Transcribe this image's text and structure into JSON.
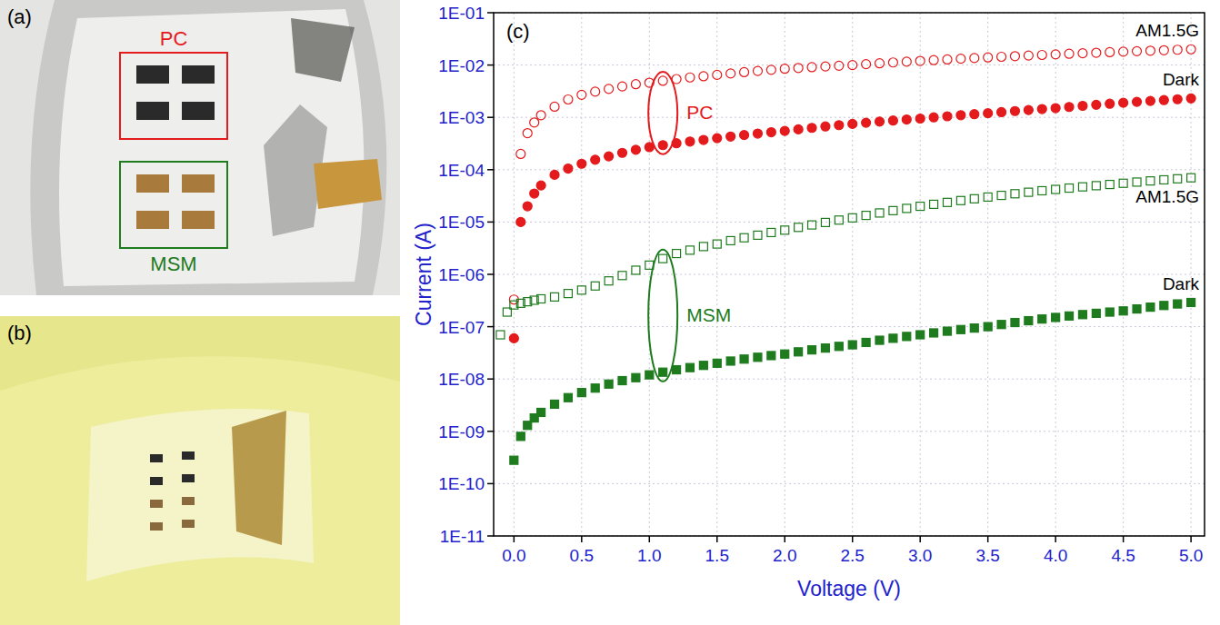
{
  "figure": {
    "panels": [
      {
        "letter": "(a)",
        "labels": [
          "PC",
          "MSM"
        ]
      },
      {
        "letter": "(b)"
      }
    ]
  },
  "chart_data": {
    "type": "scatter",
    "panel": "(c)",
    "x_label": "Voltage (V)",
    "y_label": "Current (A)",
    "log": "y",
    "grid": true,
    "xlim": [
      -0.15,
      5.1
    ],
    "ylim": [
      1e-11,
      0.1
    ],
    "xticks": [
      {
        "value": 0,
        "label": "0.0"
      },
      {
        "value": 0.5,
        "label": "0.5"
      },
      {
        "value": 1,
        "label": "1.0"
      },
      {
        "value": 1.5,
        "label": "1.5"
      },
      {
        "value": 2,
        "label": "2.0"
      },
      {
        "value": 2.5,
        "label": "2.5"
      },
      {
        "value": 3,
        "label": "3.0"
      },
      {
        "value": 3.5,
        "label": "3.5"
      },
      {
        "value": 4,
        "label": "4.0"
      },
      {
        "value": 4.5,
        "label": "4.5"
      },
      {
        "value": 5,
        "label": "5.0"
      }
    ],
    "yticks": [
      {
        "value": 1e-11,
        "label": "1E-11"
      },
      {
        "value": 1e-10,
        "label": "1E-10"
      },
      {
        "value": 1e-09,
        "label": "1E-09"
      },
      {
        "value": 1e-08,
        "label": "1E-08"
      },
      {
        "value": 1e-07,
        "label": "1E-07"
      },
      {
        "value": 1e-06,
        "label": "1E-06"
      },
      {
        "value": 1e-05,
        "label": "1E-05"
      },
      {
        "value": 0.0001,
        "label": "1E-04"
      },
      {
        "value": 0.001,
        "label": "1E-03"
      },
      {
        "value": 0.01,
        "label": "1E-02"
      },
      {
        "value": 0.1,
        "label": "1E-01"
      }
    ],
    "annotations": [
      "PC",
      "MSM"
    ],
    "x": [
      -0.1,
      -0.05,
      0,
      0.05,
      0.1,
      0.15,
      0.2,
      0.3,
      0.4,
      0.5,
      0.6,
      0.7,
      0.8,
      0.9,
      1.0,
      1.1,
      1.2,
      1.3,
      1.4,
      1.5,
      1.6,
      1.7,
      1.8,
      1.9,
      2.0,
      2.1,
      2.2,
      2.3,
      2.4,
      2.5,
      2.6,
      2.7,
      2.8,
      2.9,
      3.0,
      3.1,
      3.2,
      3.3,
      3.4,
      3.5,
      3.6,
      3.7,
      3.8,
      3.9,
      4.0,
      4.1,
      4.2,
      4.3,
      4.4,
      4.5,
      4.6,
      4.7,
      4.8,
      4.9,
      5.0
    ],
    "series": [
      {
        "name": "AM1.5G",
        "color": "#e41a1c",
        "marker": "open-circle",
        "values": [
          null,
          null,
          3.3e-07,
          0.0002,
          0.0005,
          0.0008,
          0.0011,
          0.0016,
          0.0022,
          0.0027,
          0.0031,
          0.0035,
          0.0039,
          0.0043,
          0.0046,
          0.005,
          0.0054,
          0.0058,
          0.0061,
          0.0065,
          0.0069,
          0.0073,
          0.0077,
          0.0081,
          0.0085,
          0.0088,
          0.0091,
          0.0094,
          0.0097,
          0.01,
          0.0104,
          0.0108,
          0.0112,
          0.0116,
          0.012,
          0.0124,
          0.0128,
          0.0132,
          0.0136,
          0.014,
          0.0144,
          0.0148,
          0.0152,
          0.0156,
          0.016,
          0.0164,
          0.0168,
          0.0172,
          0.0176,
          0.018,
          0.0184,
          0.0188,
          0.0192,
          0.0196,
          0.02
        ]
      },
      {
        "name": "Dark",
        "color": "#e41a1c",
        "marker": "circle",
        "values": [
          null,
          null,
          6e-08,
          1e-05,
          2e-05,
          3.5e-05,
          5e-05,
          8e-05,
          0.000105,
          0.00013,
          0.000155,
          0.00018,
          0.00021,
          0.00024,
          0.00027,
          0.000295,
          0.00032,
          0.000345,
          0.00037,
          0.0004,
          0.00043,
          0.00046,
          0.00049,
          0.00052,
          0.00055,
          0.00059,
          0.00063,
          0.00067,
          0.00071,
          0.00075,
          0.00079,
          0.00083,
          0.00087,
          0.00091,
          0.00095,
          0.001,
          0.00105,
          0.0011,
          0.00115,
          0.0012,
          0.00126,
          0.00132,
          0.00138,
          0.00144,
          0.0015,
          0.00158,
          0.00166,
          0.00174,
          0.00182,
          0.0019,
          0.00198,
          0.00206,
          0.00214,
          0.00222,
          0.0023
        ]
      },
      {
        "name": "AM1.5G",
        "color": "#1e7b1e",
        "marker": "open-square",
        "values": [
          7e-08,
          1.9e-07,
          2.6e-07,
          2.8e-07,
          3e-07,
          3.2e-07,
          3.4e-07,
          3.7e-07,
          4.3e-07,
          5e-07,
          6e-07,
          7.5e-07,
          9.5e-07,
          1.2e-06,
          1.5e-06,
          2e-06,
          2.5e-06,
          2.9e-06,
          3.4e-06,
          3.8e-06,
          4.4e-06,
          5e-06,
          5.6e-06,
          6.3e-06,
          7e-06,
          7.9e-06,
          8.8e-06,
          9.8e-06,
          1.09e-05,
          1.2e-05,
          1.34e-05,
          1.49e-05,
          1.65e-05,
          1.82e-05,
          2e-05,
          2.18e-05,
          2.37e-05,
          2.57e-05,
          2.78e-05,
          3e-05,
          3.23e-05,
          3.47e-05,
          3.71e-05,
          3.96e-05,
          4.2e-05,
          4.45e-05,
          4.7e-05,
          4.95e-05,
          5.22e-05,
          5.5e-05,
          5.8e-05,
          6.1e-05,
          6.4e-05,
          6.7e-05,
          7e-05
        ]
      },
      {
        "name": "Dark",
        "color": "#1e7b1e",
        "marker": "square",
        "values": [
          null,
          null,
          2.8e-10,
          8e-10,
          1.3e-09,
          1.8e-09,
          2.3e-09,
          3.3e-09,
          4.4e-09,
          5.5e-09,
          6.7e-09,
          8e-09,
          9.3e-09,
          1.06e-08,
          1.2e-08,
          1.35e-08,
          1.5e-08,
          1.65e-08,
          1.82e-08,
          2e-08,
          2.2e-08,
          2.4e-08,
          2.6e-08,
          2.8e-08,
          3e-08,
          3.3e-08,
          3.6e-08,
          3.9e-08,
          4.2e-08,
          4.5e-08,
          5e-08,
          5.5e-08,
          6e-08,
          6.5e-08,
          7e-08,
          7.6e-08,
          8.2e-08,
          8.8e-08,
          9.4e-08,
          1e-07,
          1.1e-07,
          1.2e-07,
          1.3e-07,
          1.4e-07,
          1.5e-07,
          1.6e-07,
          1.7e-07,
          1.8e-07,
          1.9e-07,
          2e-07,
          2.18e-07,
          2.36e-07,
          2.54e-07,
          2.72e-07,
          2.9e-07
        ]
      }
    ]
  }
}
